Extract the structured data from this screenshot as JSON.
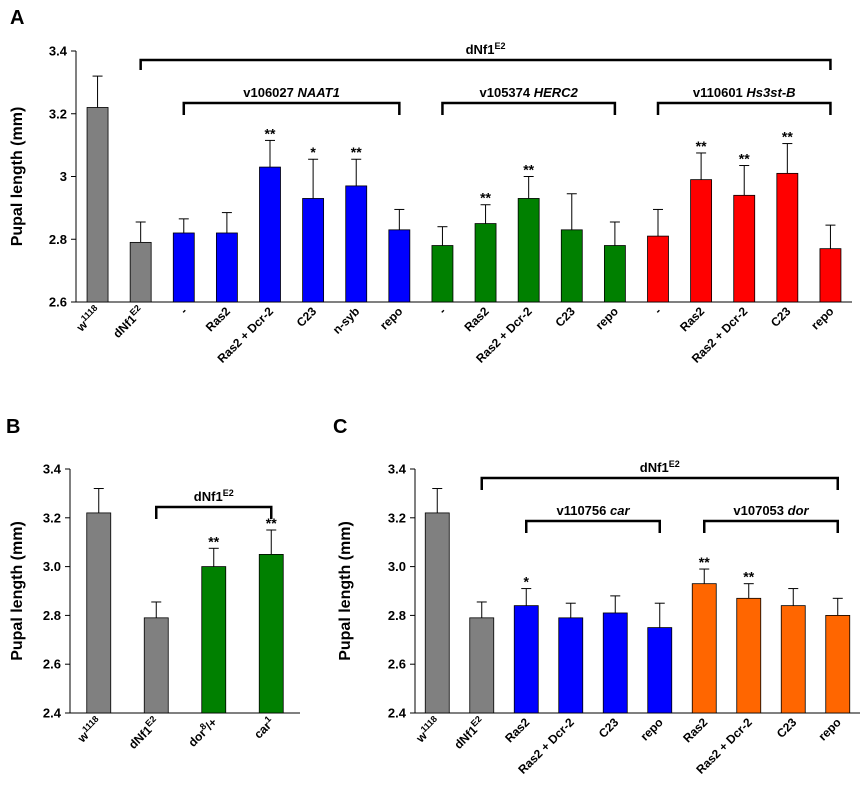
{
  "chart_data": [
    {
      "panel": "A",
      "type": "bar",
      "ylabel": "Pupal length (mm)",
      "ylim": [
        2.6,
        3.4
      ],
      "yticks": [
        "2.6",
        "2.8",
        "3",
        "3.2",
        "3.4"
      ],
      "categories": [
        {
          "base": "w",
          "sup": "1118"
        },
        {
          "base": "dNf1",
          "sup": "E2"
        },
        {
          "base": "-"
        },
        {
          "base": "Ras2"
        },
        {
          "base": "Ras2 + Dcr-2"
        },
        {
          "base": "C23"
        },
        {
          "base": "n-syb"
        },
        {
          "base": "repo"
        },
        {
          "base": "-"
        },
        {
          "base": "Ras2"
        },
        {
          "base": "Ras2 + Dcr-2"
        },
        {
          "base": "C23"
        },
        {
          "base": "repo"
        },
        {
          "base": "-"
        },
        {
          "base": "Ras2"
        },
        {
          "base": "Ras2 + Dcr-2"
        },
        {
          "base": "C23"
        },
        {
          "base": "repo"
        }
      ],
      "values": [
        3.22,
        2.79,
        2.82,
        2.82,
        3.03,
        2.93,
        2.97,
        2.83,
        2.78,
        2.85,
        2.93,
        2.83,
        2.78,
        2.81,
        2.99,
        2.94,
        3.01,
        2.77
      ],
      "errors": [
        0.1,
        0.065,
        0.045,
        0.065,
        0.085,
        0.125,
        0.085,
        0.065,
        0.06,
        0.06,
        0.07,
        0.115,
        0.075,
        0.085,
        0.085,
        0.095,
        0.095,
        0.075
      ],
      "colors": [
        "#808080",
        "#808080",
        "#0000ff",
        "#0000ff",
        "#0000ff",
        "#0000ff",
        "#0000ff",
        "#0000ff",
        "#008000",
        "#008000",
        "#008000",
        "#008000",
        "#008000",
        "#ff0000",
        "#ff0000",
        "#ff0000",
        "#ff0000",
        "#ff0000"
      ],
      "significance": [
        "",
        "",
        "",
        "",
        "**",
        "*",
        "**",
        "",
        "",
        "**",
        "**",
        "",
        "",
        "",
        "**",
        "**",
        "**",
        ""
      ],
      "brackets": [
        {
          "from": 1,
          "to": 17,
          "level": 0,
          "label": {
            "base": "dNf1",
            "sup": "E2"
          }
        },
        {
          "from": 2,
          "to": 7,
          "level": 1,
          "label": {
            "base": "v106027 ",
            "italic": "NAAT1"
          }
        },
        {
          "from": 8,
          "to": 12,
          "level": 1,
          "label": {
            "base": "v105374 ",
            "italic": "HERC2"
          }
        },
        {
          "from": 13,
          "to": 17,
          "level": 1,
          "label": {
            "base": "v110601 ",
            "italic": "Hs3st-B"
          }
        }
      ]
    },
    {
      "panel": "B",
      "type": "bar",
      "ylabel": "Pupal length (mm)",
      "ylim": [
        2.4,
        3.4
      ],
      "yticks": [
        "2.4",
        "2.6",
        "2.8",
        "3.0",
        "3.2",
        "3.4"
      ],
      "categories": [
        {
          "base": "w",
          "sup": "1118"
        },
        {
          "base": "dNf1",
          "sup": "E2"
        },
        {
          "base": "dor",
          "sup": "8",
          "after": "/+"
        },
        {
          "base": "car",
          "sup": "1"
        }
      ],
      "values": [
        3.22,
        2.79,
        3.0,
        3.05
      ],
      "errors": [
        0.1,
        0.065,
        0.075,
        0.1
      ],
      "colors": [
        "#808080",
        "#808080",
        "#008000",
        "#008000"
      ],
      "significance": [
        "",
        "",
        "**",
        "**"
      ],
      "brackets": [
        {
          "from": 1,
          "to": 3,
          "level": 0,
          "label": {
            "base": "dNf1",
            "sup": "E2"
          }
        }
      ]
    },
    {
      "panel": "C",
      "type": "bar",
      "ylabel": "Pupal length (mm)",
      "ylim": [
        2.4,
        3.4
      ],
      "yticks": [
        "2.4",
        "2.6",
        "2.8",
        "3.0",
        "3.2",
        "3.4"
      ],
      "categories": [
        {
          "base": "w",
          "sup": "1118"
        },
        {
          "base": "dNf1",
          "sup": "E2"
        },
        {
          "base": "Ras2"
        },
        {
          "base": "Ras2 + Dcr-2"
        },
        {
          "base": "C23"
        },
        {
          "base": "repo"
        },
        {
          "base": "Ras2"
        },
        {
          "base": "Ras2 + Dcr-2"
        },
        {
          "base": "C23"
        },
        {
          "base": "repo"
        }
      ],
      "values": [
        3.22,
        2.79,
        2.84,
        2.79,
        2.81,
        2.75,
        2.93,
        2.87,
        2.84,
        2.8
      ],
      "errors": [
        0.1,
        0.065,
        0.07,
        0.06,
        0.07,
        0.1,
        0.06,
        0.06,
        0.07,
        0.07
      ],
      "colors": [
        "#808080",
        "#808080",
        "#0000ff",
        "#0000ff",
        "#0000ff",
        "#0000ff",
        "#ff6600",
        "#ff6600",
        "#ff6600",
        "#ff6600"
      ],
      "significance": [
        "",
        "",
        "*",
        "",
        "",
        "",
        "**",
        "**",
        "",
        ""
      ],
      "brackets": [
        {
          "from": 1,
          "to": 9,
          "level": 0,
          "label": {
            "base": "dNf1",
            "sup": "E2"
          }
        },
        {
          "from": 2,
          "to": 5,
          "level": 1,
          "label": {
            "base": "v110756 ",
            "italic": "car"
          }
        },
        {
          "from": 6,
          "to": 9,
          "level": 1,
          "label": {
            "base": "v107053 ",
            "italic": "dor"
          }
        }
      ]
    }
  ]
}
